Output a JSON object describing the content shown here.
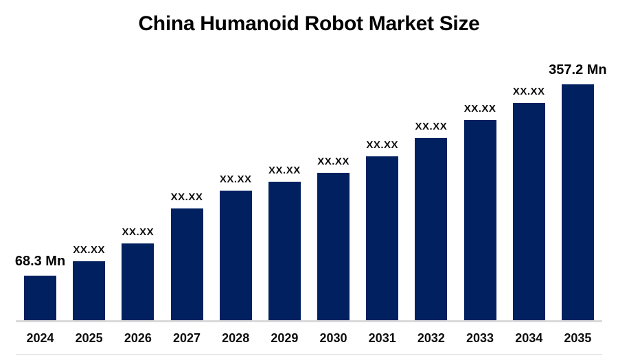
{
  "title": "China Humanoid Robot Market Size",
  "colors": {
    "bar": "#002060",
    "axis_line": "#d9d9d9",
    "bottom_border": "#e7e7e7",
    "title_text": "#000000",
    "label_text": "#0d0d0d",
    "background": "#ffffff"
  },
  "chart_data": {
    "type": "bar",
    "title": "China Humanoid Robot Market Size",
    "xlabel": "",
    "ylabel": "",
    "unit": "Mn",
    "legend": "none",
    "grid": "off",
    "ylim": [
      0,
      370
    ],
    "categories": [
      "2024",
      "2025",
      "2026",
      "2027",
      "2028",
      "2029",
      "2030",
      "2031",
      "2032",
      "2033",
      "2034",
      "2035"
    ],
    "bar_labels": [
      "68.3 Mn",
      "XX.XX",
      "XX.XX",
      "XX.XX",
      "XX.XX",
      "XX.XX",
      "XX.XX",
      "XX.XX",
      "XX.XX",
      "XX.XX",
      "XX.XX",
      "357.2 Mn"
    ],
    "values": [
      68.3,
      90,
      117,
      170,
      197,
      210,
      224,
      249,
      276,
      303,
      329,
      357.2
    ],
    "labeled_values_note": "Only 2024 (68.3 Mn) and 2035 (357.2 Mn) are shown numerically; other bars display XX.XX and their values are estimated from bar heights."
  }
}
